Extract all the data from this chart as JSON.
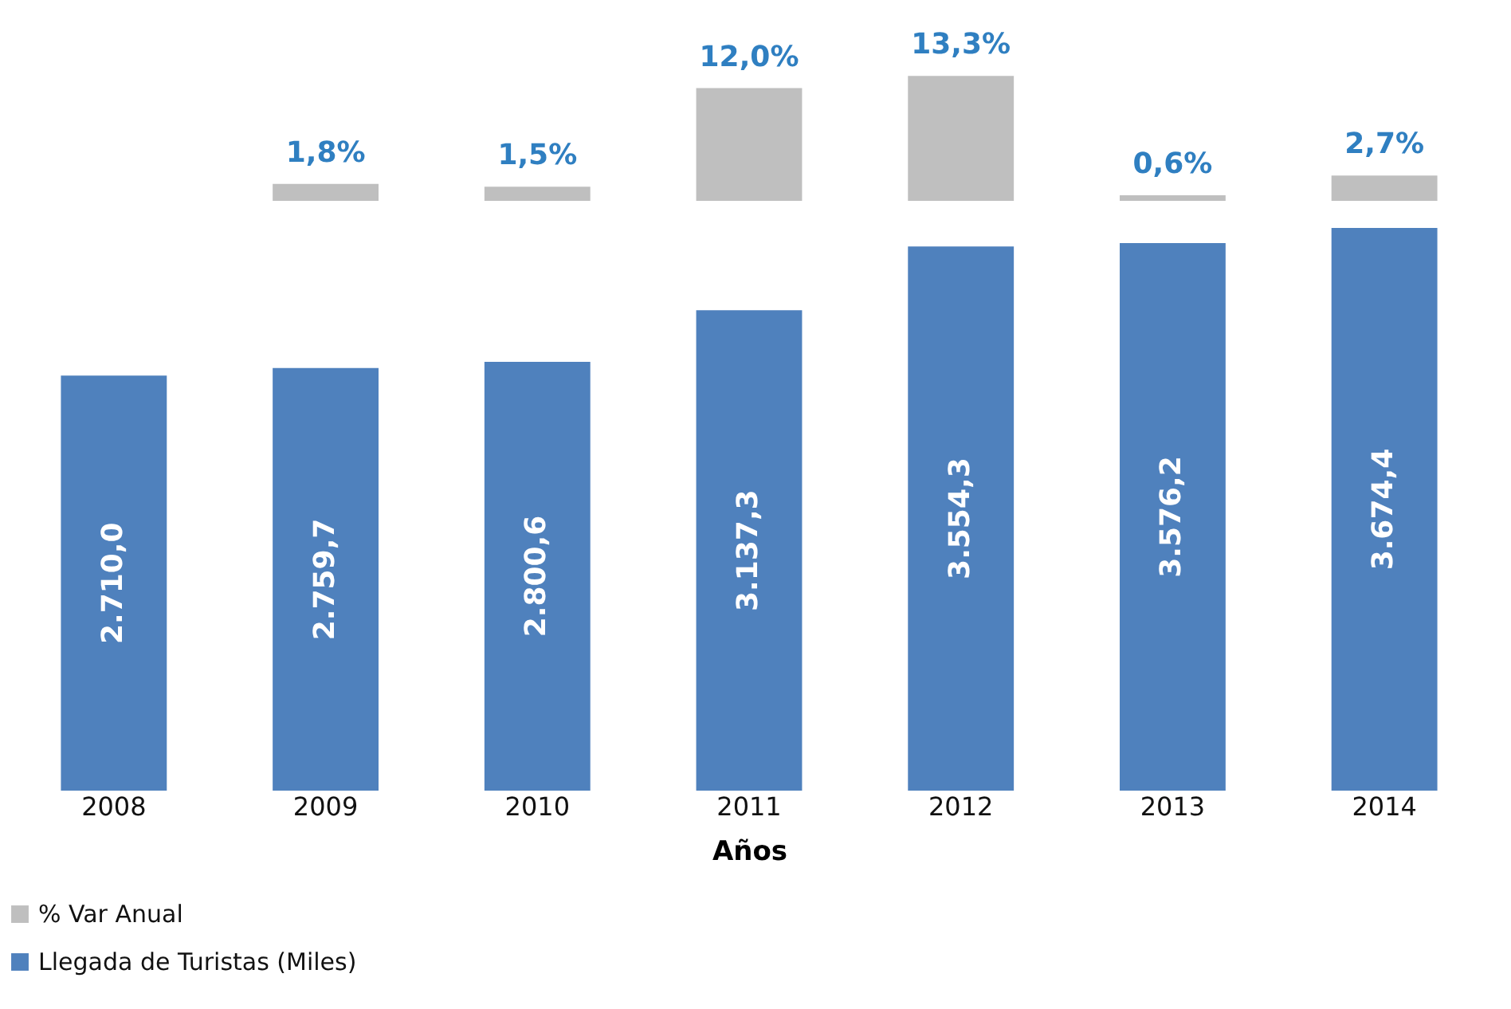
{
  "chart_data": [
    {
      "type": "bar",
      "categories": [
        "2008",
        "2009",
        "2010",
        "2011",
        "2012",
        "2013",
        "2014"
      ],
      "series": [
        {
          "name": "% Var Anual",
          "color": "#bfbfbf",
          "values": [
            null,
            1.8,
            1.5,
            12.0,
            13.3,
            0.6,
            2.7
          ],
          "value_labels": [
            null,
            "1,8%",
            "1,5%",
            "12,0%",
            "13,3%",
            "0,6%",
            "2,7%"
          ]
        }
      ],
      "tick_labels": false,
      "grid": false
    },
    {
      "type": "bar",
      "xlabel": "Años",
      "categories": [
        "2008",
        "2009",
        "2010",
        "2011",
        "2012",
        "2013",
        "2014"
      ],
      "series": [
        {
          "name": "Llegada de Turistas (Miles)",
          "color": "#4f81bd",
          "values": [
            2710.0,
            2759.7,
            2800.6,
            3137.3,
            3554.3,
            3576.2,
            3674.4
          ],
          "value_labels": [
            "2.710,0",
            "2.759,7",
            "2.800,6",
            "3.137,3",
            "3.554,3",
            "3.576,2",
            "3.674,4"
          ]
        }
      ],
      "tick_labels": "x",
      "legend": "bottom left",
      "grid": false
    }
  ]
}
